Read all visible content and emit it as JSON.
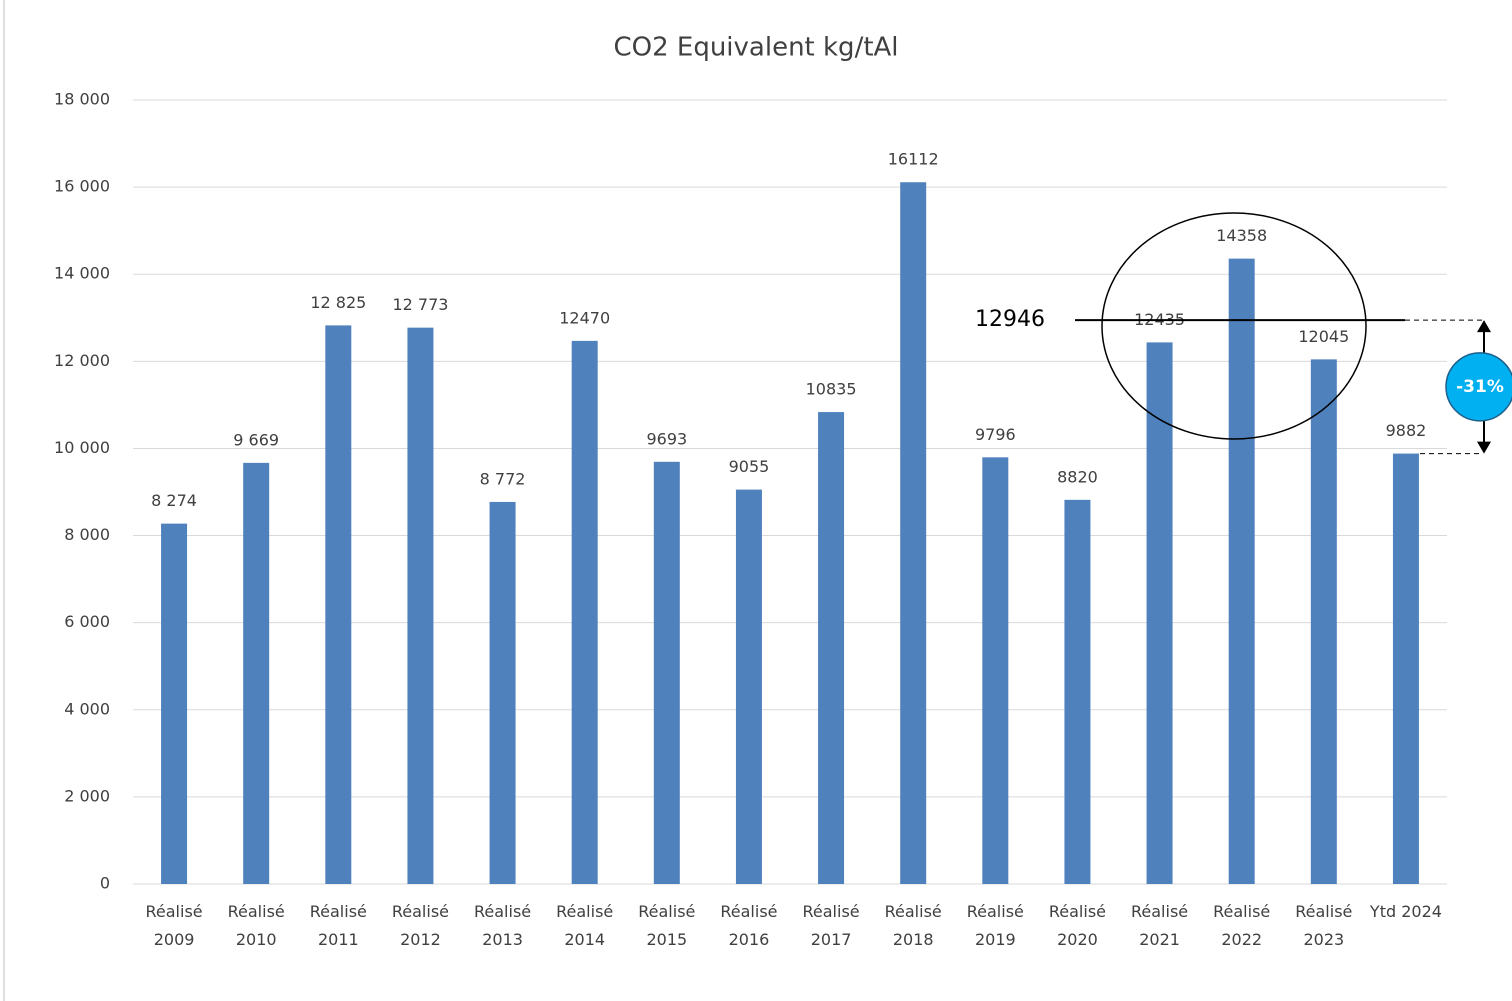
{
  "chart_data": {
    "type": "bar",
    "title": "CO2 Equivalent kg/tAl",
    "categories": [
      "Réalisé 2009",
      "Réalisé 2010",
      "Réalisé 2011",
      "Réalisé 2012",
      "Réalisé 2013",
      "Réalisé 2014",
      "Réalisé 2015",
      "Réalisé 2016",
      "Réalisé 2017",
      "Réalisé 2018",
      "Réalisé 2019",
      "Réalisé 2020",
      "Réalisé 2021",
      "Réalisé 2022",
      "Réalisé 2023",
      "Ytd 2024"
    ],
    "values": [
      8274,
      9669,
      12825,
      12773,
      8772,
      12470,
      9693,
      9055,
      10835,
      16112,
      9796,
      8820,
      12435,
      14358,
      12045,
      9882
    ],
    "value_labels": [
      "8 274",
      "9 669",
      "12 825",
      "12 773",
      "8 772",
      "12470",
      "9693",
      "9055",
      "10835",
      "16112",
      "9796",
      "8820",
      "12435",
      "14358",
      "12045",
      "9882"
    ],
    "color": "#4f81bd",
    "ylim": [
      0,
      18000
    ],
    "yticks": [
      0,
      {
        "value": 2000,
        "label": "2 000"
      },
      {
        "value": 4000,
        "label": "4 000"
      },
      {
        "value": 6000,
        "label": "6 000"
      },
      {
        "value": 8000,
        "label": "8 000"
      },
      {
        "value": 10000,
        "label": "10 000"
      },
      {
        "value": 12000,
        "label": "12 000"
      },
      {
        "value": 14000,
        "label": "14 000"
      },
      {
        "value": 16000,
        "label": "16 000"
      },
      {
        "value": 18000,
        "label": "18 000"
      }
    ],
    "grid": true,
    "annotations": {
      "reference_line": {
        "value": 12946,
        "label": "12946"
      },
      "change_label": "-31%"
    }
  }
}
